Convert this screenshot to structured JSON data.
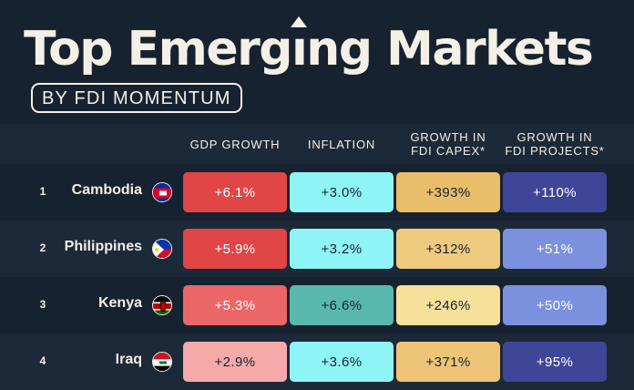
{
  "header": {
    "title_part1": "Top Emerg",
    "title_i": "ı",
    "title_part2": "ng Markets",
    "subtitle": "BY FDI MOMENTUM"
  },
  "columns": [
    {
      "line1": "GDP GROWTH",
      "line2": ""
    },
    {
      "line1": "INFLATION",
      "line2": ""
    },
    {
      "line1": "GROWTH IN",
      "line2": "FDI CAPEX*"
    },
    {
      "line1": "GROWTH IN",
      "line2": "FDI PROJECTS*"
    }
  ],
  "chart_data": {
    "type": "table",
    "title": "Top Emerging Markets",
    "subtitle": "BY FDI MOMENTUM",
    "columns": [
      "GDP GROWTH",
      "INFLATION",
      "GROWTH IN FDI CAPEX*",
      "GROWTH IN FDI PROJECTS*"
    ],
    "rows": [
      {
        "rank": "1",
        "country": "Cambodia",
        "flag": "cambodia-flag",
        "values": [
          "+6.1%",
          "+3.0%",
          "+393%",
          "+110%"
        ],
        "numbers": [
          6.1,
          3.0,
          393,
          110
        ]
      },
      {
        "rank": "2",
        "country": "Philippines",
        "flag": "philippines-flag",
        "values": [
          "+5.9%",
          "+3.2%",
          "+312%",
          "+51%"
        ],
        "numbers": [
          5.9,
          3.2,
          312,
          51
        ]
      },
      {
        "rank": "3",
        "country": "Kenya",
        "flag": "kenya-flag",
        "values": [
          "+5.3%",
          "+6.6%",
          "+246%",
          "+50%"
        ],
        "numbers": [
          5.3,
          6.6,
          246,
          50
        ]
      },
      {
        "rank": "4",
        "country": "Iraq",
        "flag": "iraq-flag",
        "values": [
          "+2.9%",
          "+3.6%",
          "+371%",
          "+95%"
        ],
        "numbers": [
          2.9,
          3.6,
          371,
          95
        ]
      }
    ],
    "cell_colors": [
      [
        {
          "bg": "#e04646",
          "fg": "#ffffff"
        },
        {
          "bg": "#8ff4f5",
          "fg": "#172230"
        },
        {
          "bg": "#e9bd6a",
          "fg": "#172230"
        },
        {
          "bg": "#3f4597",
          "fg": "#ffffff"
        }
      ],
      [
        {
          "bg": "#e04646",
          "fg": "#ffffff"
        },
        {
          "bg": "#8ff4f5",
          "fg": "#172230"
        },
        {
          "bg": "#efcb7f",
          "fg": "#172230"
        },
        {
          "bg": "#7b91de",
          "fg": "#ffffff"
        }
      ],
      [
        {
          "bg": "#eb6767",
          "fg": "#ffffff"
        },
        {
          "bg": "#5ab7ae",
          "fg": "#172230"
        },
        {
          "bg": "#f6e19a",
          "fg": "#172230"
        },
        {
          "bg": "#7b91de",
          "fg": "#ffffff"
        }
      ],
      [
        {
          "bg": "#f6a9a9",
          "fg": "#172230"
        },
        {
          "bg": "#8ff4f5",
          "fg": "#172230"
        },
        {
          "bg": "#eec477",
          "fg": "#172230"
        },
        {
          "bg": "#3f4597",
          "fg": "#ffffff"
        }
      ]
    ]
  },
  "colors": {
    "background": "#172230",
    "alt_row": "#1c2938",
    "text_light": "#f4f0e6"
  }
}
